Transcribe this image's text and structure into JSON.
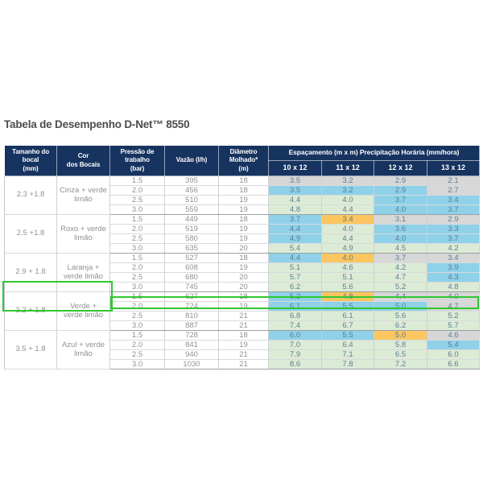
{
  "title": "Tabela de Desempenho D-Net™ 8550",
  "colors": {
    "gray": "#d7d7d7",
    "blue": "#8ed1e9",
    "green": "#dcebd5",
    "orange": "#fbc55f",
    "header_navy": "#17335f",
    "highlight_green": "#2fc82f"
  },
  "table": {
    "headers": {
      "nozzle_size": "Tamanho do bocal\n(mm)",
      "nozzle_color": "Cor\ndos Bocais",
      "pressure": "Pressão de\ntrabalho\n(bar)",
      "flow": "Vazão (l/h)",
      "diameter": "Diâmetro\nMolhado*\n(m)",
      "spacing_title": "Espaçamento  (m x m) Precipitação Horária (mm/hora)"
    },
    "spacing_columns": [
      "10 x 12",
      "11 x 12",
      "12 x 12",
      "13 x 12"
    ],
    "groups": [
      {
        "size": "2.3 +1.8",
        "color": "Cinza + verde limão",
        "rows": [
          {
            "pressure": "1.5",
            "flow": "395",
            "diameter": "18",
            "values": [
              "3.5",
              "3.2",
              "2.9",
              "2.1"
            ],
            "cellColors": [
              "gray",
              "gray",
              "gray",
              "gray"
            ]
          },
          {
            "pressure": "2.0",
            "flow": "456",
            "diameter": "18",
            "values": [
              "3.5",
              "3.2",
              "2.9",
              "2.7"
            ],
            "cellColors": [
              "blue",
              "blue",
              "blue",
              "gray"
            ]
          },
          {
            "pressure": "2.5",
            "flow": "510",
            "diameter": "19",
            "values": [
              "4.4",
              "4.0",
              "3.7",
              "3.4"
            ],
            "cellColors": [
              "green",
              "green",
              "blue",
              "blue"
            ]
          },
          {
            "pressure": "3.0",
            "flow": "559",
            "diameter": "19",
            "values": [
              "4.8",
              "4.4",
              "4.0",
              "3.7"
            ],
            "cellColors": [
              "green",
              "green",
              "blue",
              "blue"
            ]
          }
        ]
      },
      {
        "size": "2.5 +1.8",
        "color": "Roxo + verde limão",
        "rows": [
          {
            "pressure": "1.5",
            "flow": "449",
            "diameter": "18",
            "values": [
              "3.7",
              "3.4",
              "3.1",
              "2.9"
            ],
            "cellColors": [
              "blue",
              "orange",
              "gray",
              "gray"
            ]
          },
          {
            "pressure": "2.0",
            "flow": "519",
            "diameter": "19",
            "values": [
              "4.4",
              "4.0",
              "3.6",
              "3.3"
            ],
            "cellColors": [
              "blue",
              "green",
              "blue",
              "blue"
            ]
          },
          {
            "pressure": "2.5",
            "flow": "580",
            "diameter": "19",
            "values": [
              "4.9",
              "4.4",
              "4.0",
              "3.7"
            ],
            "cellColors": [
              "blue",
              "green",
              "blue",
              "blue"
            ]
          },
          {
            "pressure": "3.0",
            "flow": "635",
            "diameter": "20",
            "values": [
              "5.4",
              "4.9",
              "4.5",
              "4.2"
            ],
            "cellColors": [
              "green",
              "green",
              "green",
              "green"
            ]
          }
        ]
      },
      {
        "size": "2.9 + 1.8",
        "color": "Laranja + verde limão",
        "rows": [
          {
            "pressure": "1.5",
            "flow": "527",
            "diameter": "18",
            "values": [
              "4.4",
              "4.0",
              "3.7",
              "3.4"
            ],
            "cellColors": [
              "blue",
              "orange",
              "gray",
              "gray"
            ]
          },
          {
            "pressure": "2.0",
            "flow": "608",
            "diameter": "19",
            "values": [
              "5.1",
              "4.6",
              "4.2",
              "3.9"
            ],
            "cellColors": [
              "green",
              "green",
              "green",
              "blue"
            ]
          },
          {
            "pressure": "2.5",
            "flow": "680",
            "diameter": "20",
            "values": [
              "5.7",
              "5.1",
              "4.7",
              "4.3"
            ],
            "cellColors": [
              "green",
              "green",
              "green",
              "blue"
            ]
          },
          {
            "pressure": "3.0",
            "flow": "745",
            "diameter": "20",
            "values": [
              "6.2",
              "5.6",
              "5.2",
              "4.8"
            ],
            "cellColors": [
              "green",
              "green",
              "green",
              "green"
            ]
          }
        ]
      },
      {
        "size": "3.2 + 1.8",
        "color": "Verde + verde limão",
        "highlighted": true,
        "rows": [
          {
            "pressure": "1.5",
            "flow": "627",
            "diameter": "18",
            "values": [
              "5.2",
              "4.8",
              "4.4",
              "4.0"
            ],
            "cellColors": [
              "blue",
              "orange",
              "gray",
              "gray"
            ]
          },
          {
            "pressure": "2.0",
            "flow": "724",
            "diameter": "19",
            "values": [
              "6.1",
              "5.5",
              "5.0",
              "4.7"
            ],
            "cellColors": [
              "blue",
              "blue",
              "blue",
              "gray"
            ]
          },
          {
            "pressure": "2.5",
            "flow": "810",
            "diameter": "21",
            "values": [
              "6.8",
              "6.1",
              "5.6",
              "5.2"
            ],
            "cellColors": [
              "green",
              "green",
              "green",
              "green"
            ],
            "highlighted": true
          },
          {
            "pressure": "3.0",
            "flow": "887",
            "diameter": "21",
            "values": [
              "7.4",
              "6.7",
              "6.2",
              "5.7"
            ],
            "cellColors": [
              "green",
              "green",
              "green",
              "green"
            ]
          }
        ]
      },
      {
        "size": "3.5 + 1.8",
        "color": "Azul + verde limão",
        "rows": [
          {
            "pressure": "1.5",
            "flow": "728",
            "diameter": "18",
            "values": [
              "6.0",
              "5.5",
              "5.0",
              "4.6"
            ],
            "cellColors": [
              "blue",
              "blue",
              "orange",
              "gray"
            ]
          },
          {
            "pressure": "2.0",
            "flow": "841",
            "diameter": "19",
            "values": [
              "7.0",
              "6.4",
              "5.8",
              "5.4"
            ],
            "cellColors": [
              "green",
              "green",
              "green",
              "blue"
            ]
          },
          {
            "pressure": "2.5",
            "flow": "940",
            "diameter": "21",
            "values": [
              "7.9",
              "7.1",
              "6.5",
              "6.0"
            ],
            "cellColors": [
              "green",
              "green",
              "green",
              "green"
            ]
          },
          {
            "pressure": "3.0",
            "flow": "1030",
            "diameter": "21",
            "values": [
              "8.6",
              "7.8",
              "7.2",
              "6.6"
            ],
            "cellColors": [
              "green",
              "green",
              "green",
              "green"
            ]
          }
        ]
      }
    ]
  }
}
